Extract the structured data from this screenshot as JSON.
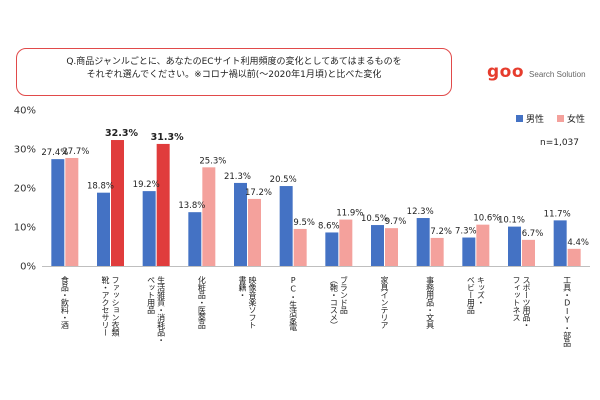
{
  "question": {
    "line1": "Q.商品ジャンルごとに、あなたのECサイト利用頻度の変化としてあてはまるものを",
    "line2": "それぞれ選んでください。※コロナ禍以前(～2020年1月頃)と比べた変化"
  },
  "brand": {
    "name": "goo",
    "subtitle": "Search Solution",
    "color": "#e63c2d"
  },
  "colors": {
    "male": "#4472c4",
    "female": "#f4a19c",
    "highlight": "#e03c3c",
    "border": "#e14a4a"
  },
  "chart_data": {
    "type": "bar",
    "categories": [
      "食品・飲料・酒",
      "ファッション衣類 靴・アクセサリー",
      "生活雑貨・消耗品・ペット用品",
      "化粧品・医薬品",
      "書籍・映像音楽ソフト",
      "PC・生活家電",
      "ブランド品（鞄・コスメ）",
      "家具インテリア",
      "事務用品・文具",
      "キッズ・ベビー用品",
      "スポーツ用品・フィットネス",
      "工具・DIY・部品"
    ],
    "category_lines": [
      [
        "食品・飲料・酒"
      ],
      [
        "ファッション衣類",
        "靴・アクセサリー"
      ],
      [
        "生活雑貨・消耗品・",
        "ペット用品"
      ],
      [
        "化粧品・医薬品"
      ],
      [
        "映像音楽ソフト",
        "書籍・"
      ],
      [
        "PC・生活家電"
      ],
      [
        "ブランド品",
        "（鞄・コスメ）"
      ],
      [
        "家具インテリア"
      ],
      [
        "事務用品・文具"
      ],
      [
        "キッズ・",
        "ベビー用品"
      ],
      [
        "スポーツ用品・",
        "フィットネス"
      ],
      [
        "工具・DIY・部品"
      ]
    ],
    "series": [
      {
        "name": "男性",
        "values": [
          27.4,
          18.8,
          19.2,
          13.8,
          21.3,
          20.5,
          8.6,
          10.5,
          12.3,
          7.3,
          10.1,
          11.7
        ],
        "labels": [
          "27.4%",
          "18.8%",
          "19.2%",
          "13.8%",
          "21.3%",
          "20.5%",
          "8.6%",
          "10.5%",
          "12.3%",
          "7.3%",
          "10.1%",
          "11.7%"
        ]
      },
      {
        "name": "女性",
        "values": [
          27.7,
          32.3,
          31.3,
          25.3,
          17.2,
          9.5,
          11.9,
          9.7,
          7.2,
          10.6,
          6.7,
          4.4
        ],
        "labels": [
          "27.7%",
          "32.3%",
          "31.3%",
          "25.3%",
          "17.2%",
          "9.5%",
          "11.9%",
          "9.7%",
          "7.2%",
          "10.6%",
          "6.7%",
          "4.4%"
        ]
      }
    ],
    "highlight_female_categories": [
      1,
      2
    ],
    "ylim": [
      0,
      40
    ],
    "yticks": [
      0,
      10,
      20,
      30,
      40
    ],
    "ytick_labels": [
      "0%",
      "10%",
      "20%",
      "30%",
      "40%"
    ],
    "legend_position": "top-right",
    "note": "n=1,037",
    "grid": false
  }
}
